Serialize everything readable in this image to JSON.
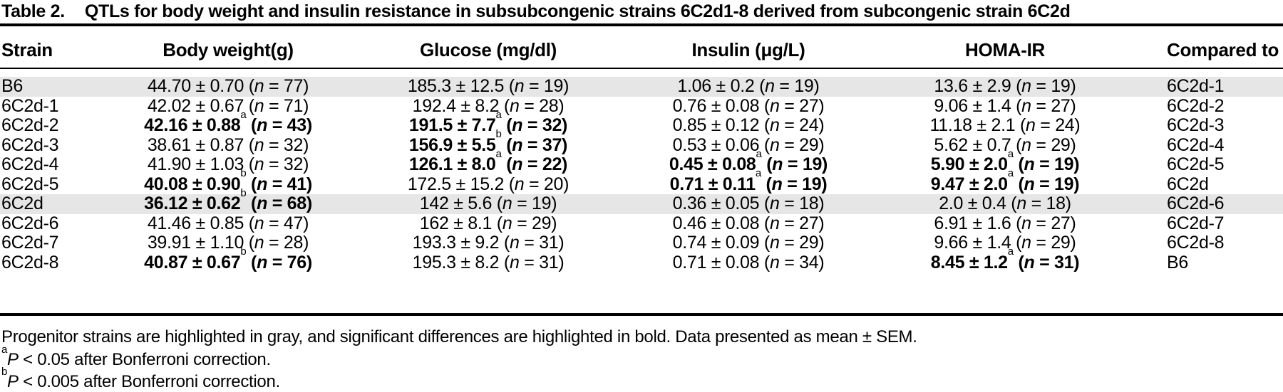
{
  "title": {
    "label": "Table 2.",
    "text": "QTLs for body weight and insulin resistance in subsubcongenic strains 6C2d1-8 derived from subcongenic strain 6C2d"
  },
  "symbols": {
    "plus_minus": "±",
    "n_var": "n",
    "equals": "=",
    "open_paren": "(",
    "close_paren": ")"
  },
  "colors": {
    "highlight_gray": "#e6e6e6",
    "text": "#000000",
    "rule": "#000000"
  },
  "table": {
    "columns": [
      {
        "key": "strain",
        "label": "Strain"
      },
      {
        "key": "body_weight",
        "label": "Body weight(g)"
      },
      {
        "key": "glucose",
        "label": "Glucose (mg/dl)"
      },
      {
        "key": "insulin",
        "label": "Insulin (μg/L)"
      },
      {
        "key": "homa_ir",
        "label": "HOMA-IR"
      },
      {
        "key": "compared_to",
        "label": "Compared to"
      }
    ],
    "rows": [
      {
        "strain": "B6",
        "highlight": true,
        "body_weight": {
          "mean": "44.70",
          "sem": "0.70",
          "sup": "",
          "n": "77",
          "bold": false
        },
        "glucose": {
          "mean": "185.3",
          "sem": "12.5",
          "sup": "",
          "n": "19",
          "bold": false
        },
        "insulin": {
          "mean": "1.06",
          "sem": "0.2",
          "sup": "",
          "n": "19",
          "bold": false
        },
        "homa_ir": {
          "mean": "13.6",
          "sem": "2.9",
          "sup": "",
          "n": "19",
          "bold": false
        },
        "compared_to": "6C2d-1"
      },
      {
        "strain": "6C2d-1",
        "highlight": false,
        "body_weight": {
          "mean": "42.02",
          "sem": "0.67",
          "sup": "",
          "n": "71",
          "bold": false
        },
        "glucose": {
          "mean": "192.4",
          "sem": "8.2",
          "sup": "",
          "n": "28",
          "bold": false
        },
        "insulin": {
          "mean": "0.76",
          "sem": "0.08",
          "sup": "",
          "n": "27",
          "bold": false
        },
        "homa_ir": {
          "mean": "9.06",
          "sem": "1.4",
          "sup": "",
          "n": "27",
          "bold": false
        },
        "compared_to": "6C2d-2"
      },
      {
        "strain": "6C2d-2",
        "highlight": false,
        "body_weight": {
          "mean": "42.16",
          "sem": "0.88",
          "sup": "a",
          "n": "43",
          "bold": true
        },
        "glucose": {
          "mean": "191.5",
          "sem": "7.7",
          "sup": "a",
          "n": "32",
          "bold": true
        },
        "insulin": {
          "mean": "0.85",
          "sem": "0.12",
          "sup": "",
          "n": "24",
          "bold": false
        },
        "homa_ir": {
          "mean": "11.18",
          "sem": "2.1",
          "sup": "",
          "n": "24",
          "bold": false
        },
        "compared_to": "6C2d-3"
      },
      {
        "strain": "6C2d-3",
        "highlight": false,
        "body_weight": {
          "mean": "38.61",
          "sem": "0.87",
          "sup": "",
          "n": "32",
          "bold": false
        },
        "glucose": {
          "mean": "156.9",
          "sem": "5.5",
          "sup": "b",
          "n": "37",
          "bold": true
        },
        "insulin": {
          "mean": "0.53",
          "sem": "0.06",
          "sup": "",
          "n": "29",
          "bold": false
        },
        "homa_ir": {
          "mean": "5.62",
          "sem": "0.7",
          "sup": "",
          "n": "29",
          "bold": false
        },
        "compared_to": "6C2d-4"
      },
      {
        "strain": "6C2d-4",
        "highlight": false,
        "body_weight": {
          "mean": "41.90",
          "sem": "1.03",
          "sup": "",
          "n": "32",
          "bold": false
        },
        "glucose": {
          "mean": "126.1",
          "sem": "8.0",
          "sup": "a",
          "n": "22",
          "bold": true
        },
        "insulin": {
          "mean": "0.45",
          "sem": "0.08",
          "sup": "a",
          "n": "19",
          "bold": true
        },
        "homa_ir": {
          "mean": "5.90",
          "sem": "2.0",
          "sup": "a",
          "n": "19",
          "bold": true
        },
        "compared_to": "6C2d-5"
      },
      {
        "strain": "6C2d-5",
        "highlight": false,
        "body_weight": {
          "mean": "40.08",
          "sem": "0.90",
          "sup": "b",
          "n": "41",
          "bold": true
        },
        "glucose": {
          "mean": "172.5",
          "sem": "15.2",
          "sup": "",
          "n": "20",
          "bold": false
        },
        "insulin": {
          "mean": "0.71",
          "sem": "0.11",
          "sup": "a",
          "n": "19",
          "bold": true
        },
        "homa_ir": {
          "mean": "9.47",
          "sem": "2.0",
          "sup": "a",
          "n": "19",
          "bold": true
        },
        "compared_to": "6C2d"
      },
      {
        "strain": "6C2d",
        "highlight": true,
        "body_weight": {
          "mean": "36.12",
          "sem": "0.62",
          "sup": "b",
          "n": "68",
          "bold": true
        },
        "glucose": {
          "mean": "142",
          "sem": "5.6",
          "sup": "",
          "n": "19",
          "bold": false
        },
        "insulin": {
          "mean": "0.36",
          "sem": "0.05",
          "sup": "",
          "n": "18",
          "bold": false
        },
        "homa_ir": {
          "mean": "2.0",
          "sem": "0.4",
          "sup": "",
          "n": "18",
          "bold": false
        },
        "compared_to": "6C2d-6"
      },
      {
        "strain": "6C2d-6",
        "highlight": false,
        "body_weight": {
          "mean": "41.46",
          "sem": "0.85",
          "sup": "",
          "n": "47",
          "bold": false
        },
        "glucose": {
          "mean": "162",
          "sem": "8.1",
          "sup": "",
          "n": "29",
          "bold": false
        },
        "insulin": {
          "mean": "0.46",
          "sem": "0.08",
          "sup": "",
          "n": "27",
          "bold": false
        },
        "homa_ir": {
          "mean": "6.91",
          "sem": "1.6",
          "sup": "",
          "n": "27",
          "bold": false
        },
        "compared_to": "6C2d-7"
      },
      {
        "strain": "6C2d-7",
        "highlight": false,
        "body_weight": {
          "mean": "39.91",
          "sem": "1.10",
          "sup": "",
          "n": "28",
          "bold": false
        },
        "glucose": {
          "mean": "193.3",
          "sem": "9.2",
          "sup": "",
          "n": "31",
          "bold": false
        },
        "insulin": {
          "mean": "0.74",
          "sem": "0.09",
          "sup": "",
          "n": "29",
          "bold": false
        },
        "homa_ir": {
          "mean": "9.66",
          "sem": "1.4",
          "sup": "",
          "n": "29",
          "bold": false
        },
        "compared_to": "6C2d-8"
      },
      {
        "strain": "6C2d-8",
        "highlight": false,
        "body_weight": {
          "mean": "40.87",
          "sem": "0.67",
          "sup": "b",
          "n": "76",
          "bold": true
        },
        "glucose": {
          "mean": "195.3",
          "sem": "8.2",
          "sup": "",
          "n": "31",
          "bold": false
        },
        "insulin": {
          "mean": "0.71",
          "sem": "0.08",
          "sup": "",
          "n": "34",
          "bold": false
        },
        "homa_ir": {
          "mean": "8.45",
          "sem": "1.2",
          "sup": "a",
          "n": "31",
          "bold": true
        },
        "compared_to": "B6"
      }
    ]
  },
  "footnotes": [
    {
      "sup": "",
      "var": "",
      "rest": "Progenitor strains are highlighted in gray, and significant differences are highlighted in bold. Data presented as mean ± SEM."
    },
    {
      "sup": "a",
      "var": "P",
      "rest": " < 0.05 after Bonferroni correction."
    },
    {
      "sup": "b",
      "var": "P",
      "rest": " < 0.005 after Bonferroni correction."
    }
  ]
}
